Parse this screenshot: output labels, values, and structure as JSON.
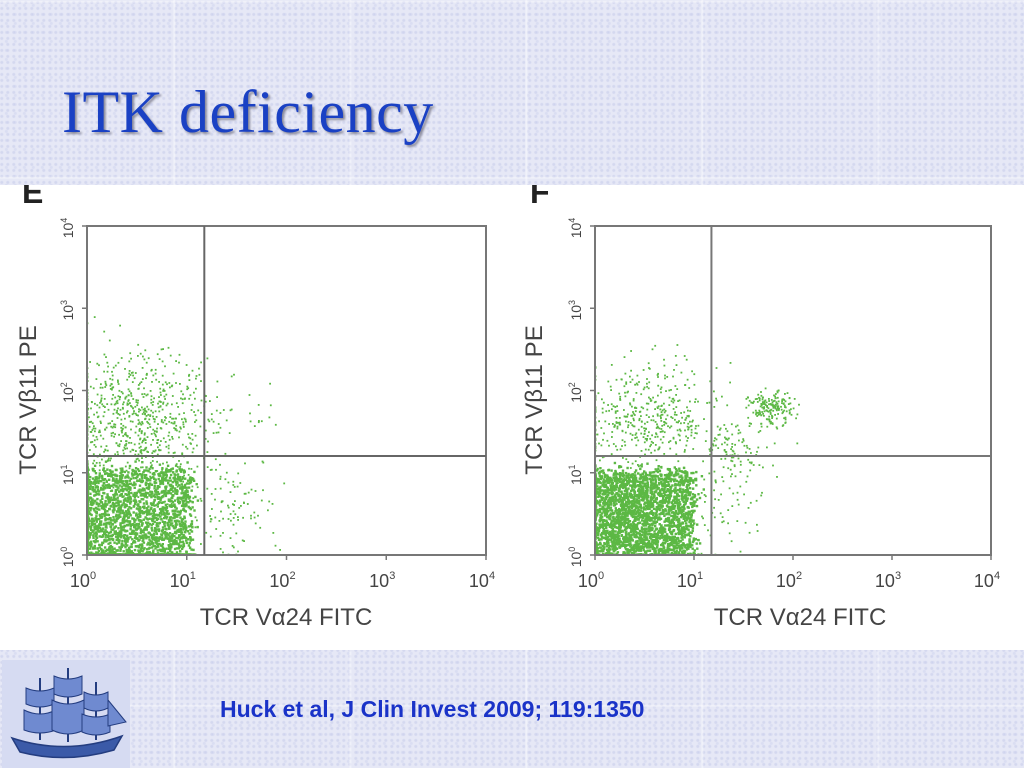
{
  "slide": {
    "title": "ITK deficiency",
    "citation": "Huck et al, J Clin Invest 2009; 119:1350"
  },
  "colors": {
    "title": "#1a41c4",
    "citation": "#1a33c8",
    "events": "#5cb844",
    "gate": "#777777"
  },
  "icons": {
    "logo": "sailing-ship-logo"
  },
  "chart_data": [
    {
      "type": "scatter",
      "panel_label": "E",
      "xlabel": "TCR Vα24 FITC",
      "ylabel": "TCR Vβ11 PE",
      "x_scale": "log",
      "y_scale": "log",
      "xlim": [
        1,
        10000
      ],
      "ylim": [
        1,
        10000
      ],
      "x_ticks": [
        {
          "base": "10",
          "exp": "0"
        },
        {
          "base": "10",
          "exp": "1"
        },
        {
          "base": "10",
          "exp": "2"
        },
        {
          "base": "10",
          "exp": "3"
        },
        {
          "base": "10",
          "exp": "4"
        }
      ],
      "y_ticks": [
        {
          "base": "10",
          "exp": "0"
        },
        {
          "base": "10",
          "exp": "1"
        },
        {
          "base": "10",
          "exp": "2"
        },
        {
          "base": "10",
          "exp": "3"
        },
        {
          "base": "10",
          "exp": "4"
        }
      ],
      "quadrant_gate": {
        "x": 15,
        "y": 16
      },
      "populations": [
        {
          "center": [
            2.7,
            2.7
          ],
          "spread": [
            0.6,
            0.6
          ],
          "density": "dense",
          "count": 2400
        },
        {
          "center": [
            3.5,
            40
          ],
          "spread": [
            0.75,
            0.85
          ],
          "density": "scattered",
          "count": 750
        },
        {
          "center": [
            25,
            4
          ],
          "spread": [
            0.55,
            0.6
          ],
          "density": "sparse",
          "count": 110
        },
        {
          "center": [
            60,
            55
          ],
          "spread": [
            0.35,
            0.25
          ],
          "density": "sparse",
          "count": 14
        }
      ]
    },
    {
      "type": "scatter",
      "panel_label": "F",
      "xlabel": "TCR Vα24 FITC",
      "ylabel": "TCR Vβ11 PE",
      "x_scale": "log",
      "y_scale": "log",
      "xlim": [
        1,
        10000
      ],
      "ylim": [
        1,
        10000
      ],
      "x_ticks": [
        {
          "base": "10",
          "exp": "0"
        },
        {
          "base": "10",
          "exp": "1"
        },
        {
          "base": "10",
          "exp": "2"
        },
        {
          "base": "10",
          "exp": "3"
        },
        {
          "base": "10",
          "exp": "4"
        }
      ],
      "y_ticks": [
        {
          "base": "10",
          "exp": "0"
        },
        {
          "base": "10",
          "exp": "1"
        },
        {
          "base": "10",
          "exp": "2"
        },
        {
          "base": "10",
          "exp": "3"
        },
        {
          "base": "10",
          "exp": "4"
        }
      ],
      "quadrant_gate": {
        "x": 15,
        "y": 16
      },
      "populations": [
        {
          "center": [
            3.0,
            3.2
          ],
          "spread": [
            0.5,
            0.5
          ],
          "density": "dense",
          "count": 2500
        },
        {
          "center": [
            3.5,
            45
          ],
          "spread": [
            0.7,
            0.65
          ],
          "density": "scattered",
          "count": 450
        },
        {
          "center": [
            60,
            60
          ],
          "spread": [
            0.22,
            0.2
          ],
          "density": "cluster",
          "count": 180
        },
        {
          "center": [
            25,
            20
          ],
          "spread": [
            0.35,
            0.3
          ],
          "density": "sparse",
          "count": 90
        },
        {
          "center": [
            22,
            4
          ],
          "spread": [
            0.4,
            0.5
          ],
          "density": "sparse",
          "count": 60
        }
      ]
    }
  ]
}
